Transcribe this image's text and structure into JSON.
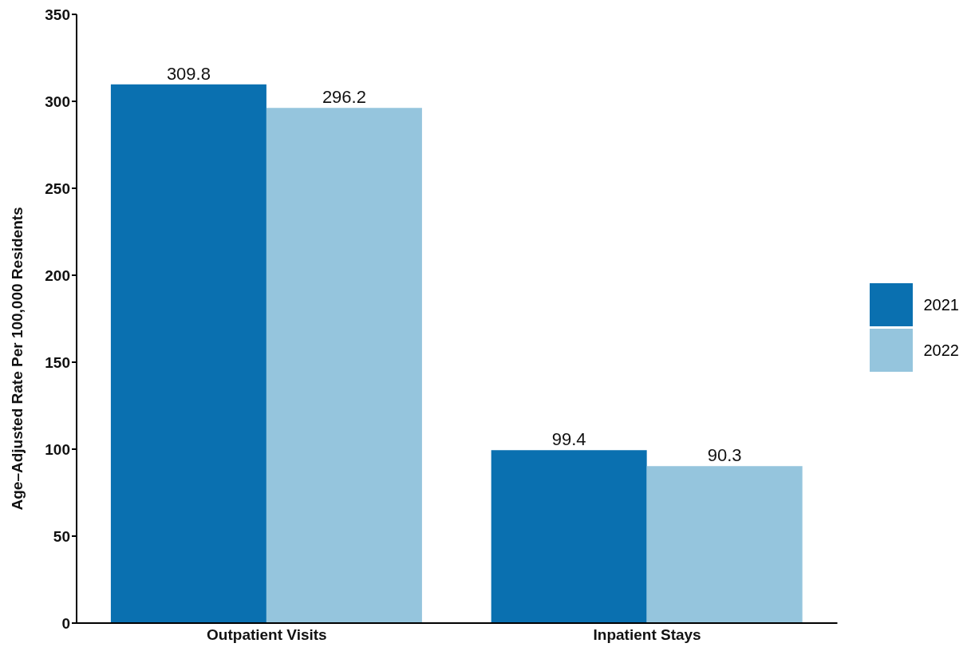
{
  "chart_data": {
    "type": "bar",
    "ylabel": "Age–Adjusted Rate Per 100,000 Residents",
    "categories": [
      "Outpatient Visits",
      "Inpatient Stays"
    ],
    "series": [
      {
        "name": "2021",
        "color": "#0a70b0",
        "values": [
          309.8,
          99.4
        ]
      },
      {
        "name": "2022",
        "color": "#95c5dd",
        "values": [
          296.2,
          90.3
        ]
      }
    ],
    "ylim": [
      0,
      350
    ],
    "yticks": [
      0,
      50,
      100,
      150,
      200,
      250,
      300,
      350
    ],
    "grid": false,
    "legend": "right",
    "data_labels": true
  }
}
